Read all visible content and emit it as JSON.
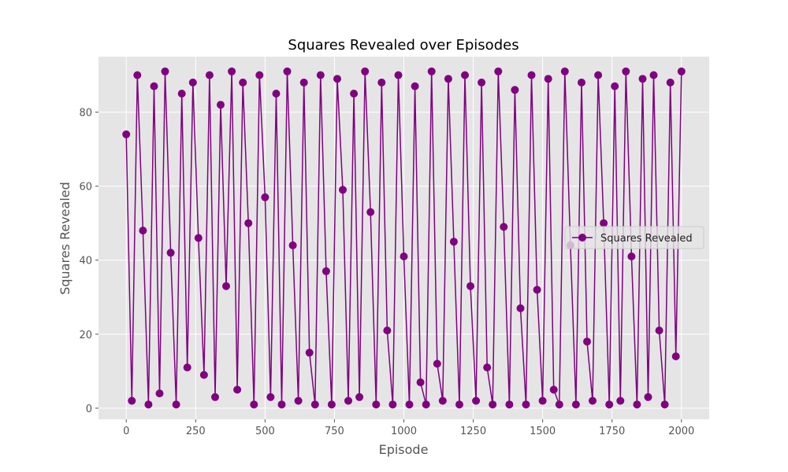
{
  "chart_data": {
    "type": "line",
    "title": "Squares Revealed over Episodes",
    "xlabel": "Episode",
    "ylabel": "Squares Revealed",
    "xlim": [
      -100,
      2100
    ],
    "ylim": [
      -3,
      95
    ],
    "x_ticks": [
      0,
      250,
      500,
      750,
      1000,
      1250,
      1500,
      1750,
      2000
    ],
    "y_ticks": [
      0,
      20,
      40,
      60,
      80
    ],
    "grid": true,
    "legend_position": "center-right",
    "series": [
      {
        "name": "Squares Revealed",
        "color": "#800080",
        "marker": "circle",
        "x": [
          0,
          20,
          40,
          60,
          80,
          100,
          120,
          140,
          160,
          180,
          200,
          220,
          240,
          260,
          280,
          300,
          320,
          340,
          360,
          380,
          400,
          420,
          440,
          460,
          480,
          500,
          520,
          540,
          560,
          580,
          600,
          620,
          640,
          660,
          680,
          700,
          720,
          740,
          760,
          780,
          800,
          820,
          840,
          860,
          880,
          900,
          920,
          940,
          960,
          980,
          1000,
          1020,
          1040,
          1060,
          1080,
          1100,
          1120,
          1140,
          1160,
          1180,
          1200,
          1220,
          1240,
          1260,
          1280,
          1300,
          1320,
          1340,
          1360,
          1380,
          1400,
          1420,
          1440,
          1460,
          1480,
          1500,
          1520,
          1540,
          1560,
          1580,
          1600,
          1620,
          1640,
          1660,
          1680,
          1700,
          1720,
          1740,
          1760,
          1780,
          1800,
          1820,
          1840,
          1860,
          1880,
          1900,
          1920,
          1940,
          1960,
          1980,
          2000
        ],
        "values": [
          74,
          2,
          90,
          48,
          1,
          87,
          4,
          91,
          42,
          1,
          85,
          11,
          88,
          46,
          9,
          90,
          3,
          82,
          33,
          91,
          5,
          88,
          50,
          1,
          90,
          57,
          3,
          85,
          1,
          91,
          44,
          2,
          88,
          15,
          1,
          90,
          37,
          1,
          89,
          59,
          2,
          85,
          3,
          91,
          53,
          1,
          88,
          21,
          1,
          90,
          41,
          1,
          87,
          7,
          1,
          91,
          12,
          2,
          89,
          45,
          1,
          90,
          33,
          2,
          88,
          11,
          1,
          91,
          49,
          1,
          86,
          27,
          1,
          90,
          32,
          2,
          89,
          5,
          1,
          91,
          44,
          1,
          88,
          18,
          2,
          90,
          50,
          1,
          87,
          2,
          91,
          41,
          1,
          89,
          3,
          90,
          21,
          1,
          88,
          14,
          91
        ]
      }
    ]
  }
}
